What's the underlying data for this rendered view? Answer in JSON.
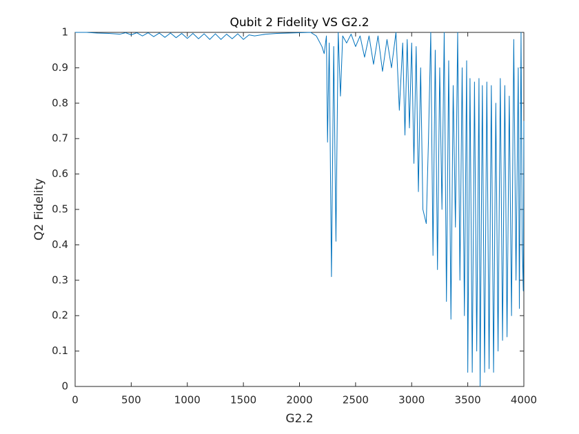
{
  "chart_data": {
    "type": "line",
    "title": "Qubit 2 Fidelity VS G2.2",
    "x_label": "G2.2",
    "y_label": "Q2 Fidelity",
    "xlim": [
      0,
      4000
    ],
    "ylim": [
      0,
      1
    ],
    "xticks": [
      0,
      500,
      1000,
      1500,
      2000,
      2500,
      3000,
      3500,
      4000
    ],
    "yticks": [
      0,
      0.1,
      0.2,
      0.3,
      0.4,
      0.5,
      0.6,
      0.7,
      0.8,
      0.9,
      1
    ],
    "grid": false,
    "x": [
      0,
      100,
      200,
      300,
      400,
      450,
      500,
      550,
      600,
      650,
      700,
      750,
      800,
      850,
      900,
      950,
      1000,
      1050,
      1100,
      1150,
      1200,
      1250,
      1300,
      1350,
      1400,
      1450,
      1500,
      1550,
      1600,
      1700,
      1800,
      1900,
      2000,
      2100,
      2150,
      2200,
      2220,
      2240,
      2250,
      2265,
      2285,
      2305,
      2325,
      2345,
      2365,
      2385,
      2420,
      2460,
      2500,
      2540,
      2580,
      2620,
      2660,
      2700,
      2740,
      2780,
      2820,
      2860,
      2890,
      2920,
      2940,
      2960,
      2980,
      3000,
      3020,
      3040,
      3060,
      3080,
      3100,
      3130,
      3150,
      3170,
      3190,
      3210,
      3230,
      3250,
      3270,
      3290,
      3310,
      3330,
      3350,
      3370,
      3390,
      3410,
      3430,
      3450,
      3470,
      3490,
      3500,
      3520,
      3540,
      3560,
      3580,
      3600,
      3610,
      3630,
      3650,
      3670,
      3690,
      3710,
      3730,
      3750,
      3770,
      3790,
      3810,
      3830,
      3850,
      3870,
      3890,
      3910,
      3930,
      3950,
      3960,
      3975,
      3985,
      3995,
      4000
    ],
    "series": [
      {
        "name": "Q2 Fidelity",
        "color": "#0072bd",
        "values": [
          1,
          1,
          0.998,
          0.997,
          0.995,
          0.999,
          0.993,
          0.999,
          0.99,
          0.999,
          0.988,
          0.998,
          0.986,
          0.998,
          0.985,
          0.997,
          0.983,
          0.997,
          0.982,
          0.996,
          0.98,
          0.996,
          0.98,
          0.995,
          0.982,
          0.996,
          0.98,
          0.993,
          0.99,
          0.995,
          0.997,
          0.998,
          0.999,
          1,
          0.99,
          0.96,
          0.94,
          0.99,
          0.69,
          0.97,
          0.31,
          0.96,
          0.41,
          1,
          0.82,
          0.99,
          0.97,
          0.995,
          0.96,
          0.99,
          0.93,
          0.99,
          0.91,
          0.99,
          0.89,
          0.98,
          0.9,
          1,
          0.78,
          0.97,
          0.71,
          0.98,
          0.73,
          0.97,
          0.63,
          0.96,
          0.55,
          0.9,
          0.5,
          0.46,
          0.7,
          1,
          0.37,
          0.95,
          0.33,
          0.9,
          0.5,
          1,
          0.24,
          0.92,
          0.19,
          0.85,
          0.45,
          1,
          0.3,
          0.9,
          0.2,
          0.92,
          0.04,
          0.87,
          0.04,
          0.86,
          0.1,
          0.87,
          0,
          0.85,
          0.04,
          0.86,
          0.05,
          0.85,
          0.04,
          0.8,
          0.1,
          0.87,
          0.13,
          0.85,
          0.14,
          0.82,
          0.2,
          0.98,
          0.3,
          0.9,
          0.22,
          1,
          0.4,
          0.27,
          0.75
        ]
      }
    ]
  }
}
